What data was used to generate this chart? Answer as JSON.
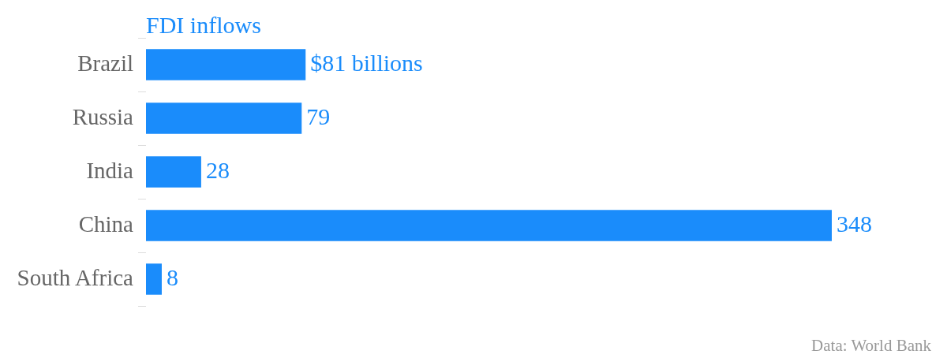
{
  "chart_data": {
    "type": "bar",
    "orientation": "horizontal",
    "title": "FDI inflows",
    "categories": [
      "Brazil",
      "Russia",
      "India",
      "China",
      "South Africa"
    ],
    "values": [
      81,
      79,
      28,
      348,
      8
    ],
    "value_labels": [
      "$81 billions",
      "79",
      "28",
      "348",
      "8"
    ],
    "color": "#1a8cfb",
    "annotations": [
      "Data: World Bank"
    ]
  }
}
